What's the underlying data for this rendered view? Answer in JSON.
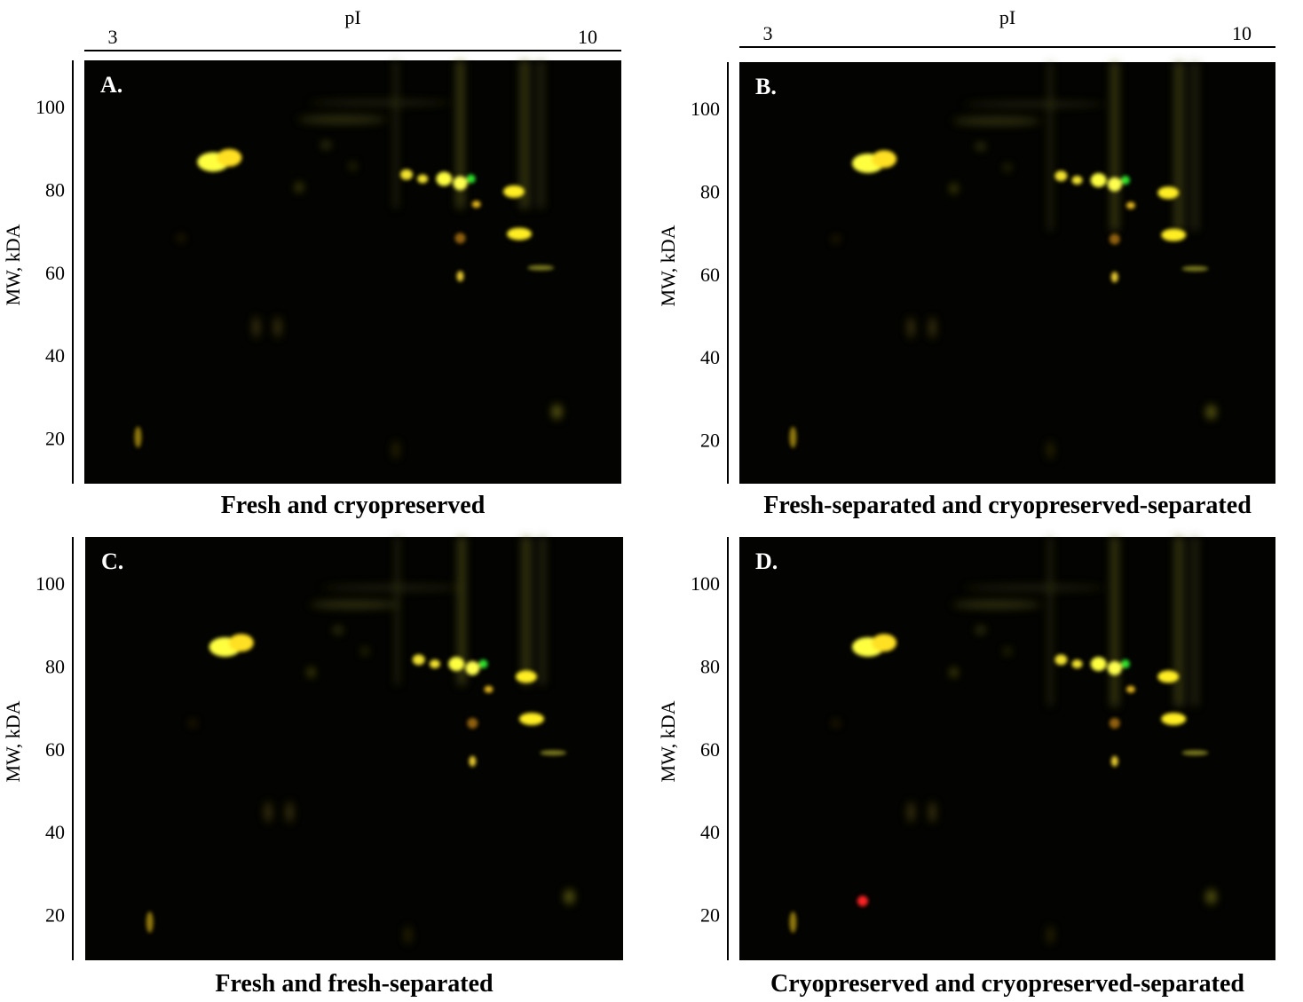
{
  "axes": {
    "x_label": "pI",
    "x_ticks": [
      3,
      10
    ],
    "y_label": "MW, kDA",
    "y_ticks": [
      100,
      80,
      60,
      40,
      20
    ]
  },
  "panels": [
    {
      "label": "A.",
      "caption": "Fresh and cryopreserved"
    },
    {
      "label": "B.",
      "caption": "Fresh-separated and cryopreserved-separated"
    },
    {
      "label": "C.",
      "caption": "Fresh and fresh-separated"
    },
    {
      "label": "D.",
      "caption": "Cryopreserved and cryopreserved-separated"
    }
  ]
}
